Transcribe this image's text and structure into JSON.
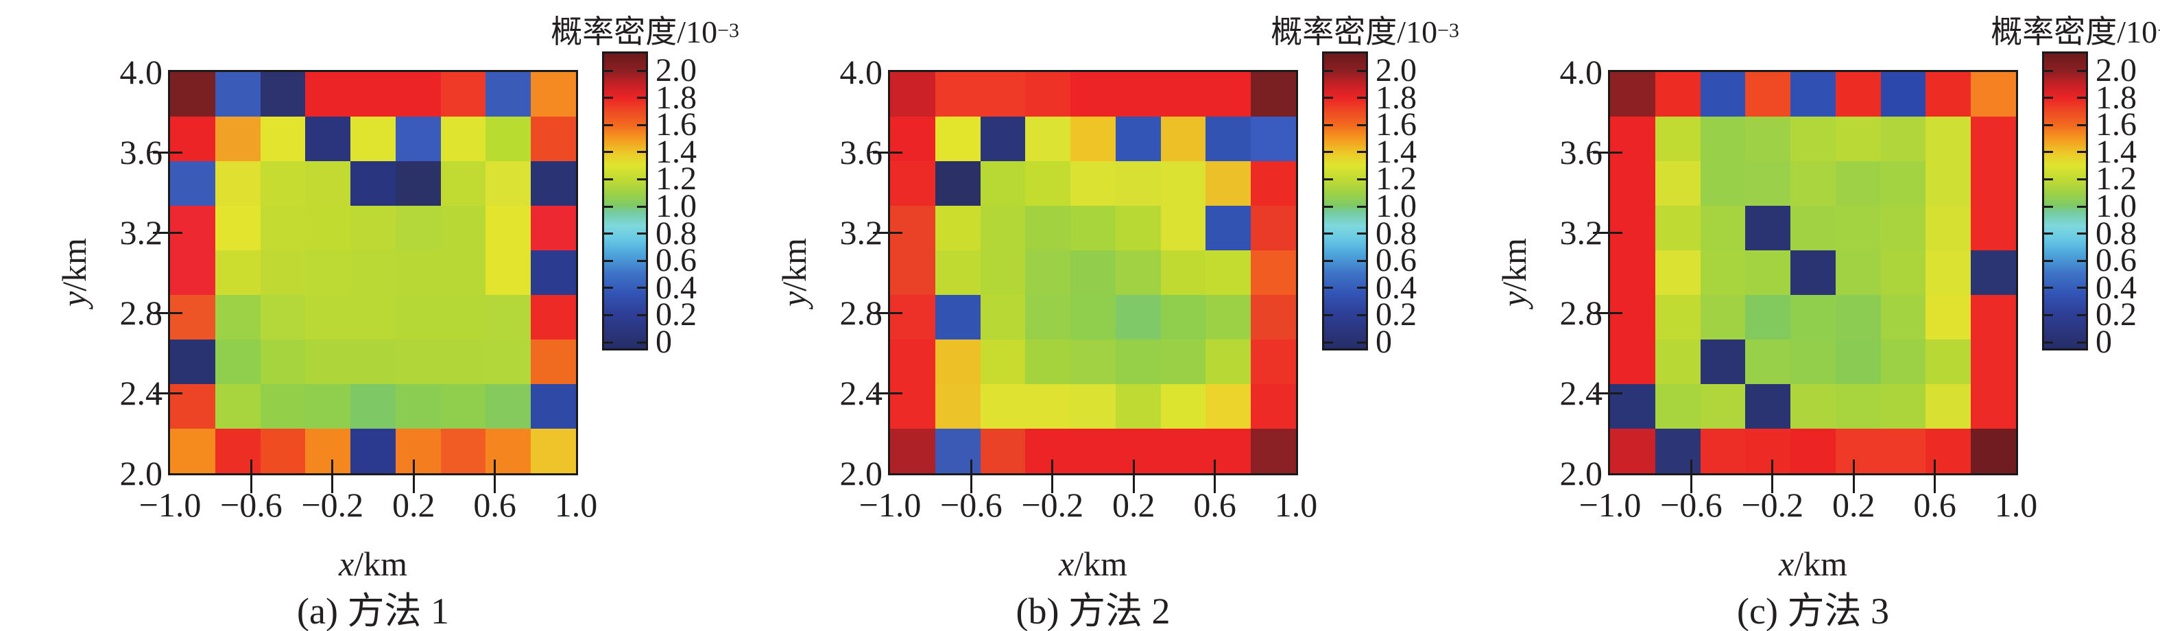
{
  "figure": {
    "background": "#ffffff",
    "text_color": "#231f20",
    "axis_color": "#1a1a1a"
  },
  "colorbar": {
    "title_main": "概率密度/10",
    "title_exp": "−3",
    "tick_labels": [
      "2.0",
      "1.8",
      "1.6",
      "1.4",
      "1.2",
      "1.0",
      "0.8",
      "0.6",
      "0.4",
      "0.2",
      "0"
    ],
    "gradient_stops": [
      "#252e6d 0%",
      "#283170 2.7%",
      "#2e3f97 11.9%",
      "#3355b5 18.7%",
      "#3f74c8 25.6%",
      "#4fa8dc 32.4%",
      "#67c8e4 37%",
      "#7fd8dc 41.6%",
      "#74cba0 46.1%",
      "#7fc968 48.4%",
      "#a0d243 53%",
      "#c2db33 57.5%",
      "#dfe52e 62.1%",
      "#eec427 66.7%",
      "#f5991f 71.2%",
      "#f2691f 75.8%",
      "#ee4a24 80.4%",
      "#ed2426 84.9%",
      "#c62026 89.5%",
      "#8c1f22 94.1%",
      "#6b1a1c 100%"
    ]
  },
  "axes": {
    "x_italic": "x",
    "x_unit": "/km",
    "y_italic": "y",
    "y_unit": "/km",
    "x_ticks": [
      "−1.0",
      "−0.6",
      "−0.2",
      "0.2",
      "0.6",
      "1.0"
    ],
    "y_ticks": [
      "4.0",
      "3.6",
      "3.2",
      "2.8",
      "2.4",
      "2.0"
    ]
  },
  "chart_data": [
    {
      "type": "heatmap",
      "caption": "(a) 方法 1",
      "xlabel": "x/km",
      "ylabel": "y/km",
      "x_range": [
        -1.0,
        1.0
      ],
      "y_range": [
        2.0,
        4.0
      ],
      "grid_size": [
        9,
        9
      ],
      "value_unit": "10^-3",
      "colorbar_range": [
        0,
        2.0
      ],
      "row_order": "top_to_bottom_y_4.0_to_2.0",
      "cell_colors": [
        [
          "#7a2022",
          "#3a5cb8",
          "#2c336e",
          "#ed2426",
          "#ed2426",
          "#ed2426",
          "#ee3a26",
          "#3a5cb8",
          "#f58a22"
        ],
        [
          "#ed2426",
          "#f0a126",
          "#e2e42d",
          "#2a357e",
          "#e0e42e",
          "#3a5abc",
          "#dfe52e",
          "#b8dc30",
          "#ee4a24"
        ],
        [
          "#3a5cb8",
          "#e0e030",
          "#c6dc30",
          "#c2da32",
          "#2a3580",
          "#2b3268",
          "#c2db33",
          "#dce234",
          "#2a3474"
        ],
        [
          "#ed2830",
          "#e2e42d",
          "#c4db31",
          "#c2db31",
          "#bed933",
          "#b4d73a",
          "#b8d836",
          "#e2e42d",
          "#ed2830"
        ],
        [
          "#ed2830",
          "#ccdd2f",
          "#c0da33",
          "#bcd934",
          "#bad934",
          "#b8d836",
          "#b8d836",
          "#e2e42d",
          "#2b3b8f"
        ],
        [
          "#ee5526",
          "#9ed246",
          "#b4d73a",
          "#bad935",
          "#bad935",
          "#b6d837",
          "#b6d837",
          "#b4d73a",
          "#ed2a26"
        ],
        [
          "#293372",
          "#90ce4e",
          "#a6d43f",
          "#aed63b",
          "#aed63b",
          "#b0d63a",
          "#b0d63a",
          "#b2d73a",
          "#f06a20"
        ],
        [
          "#ee4426",
          "#a8d53e",
          "#94cf4a",
          "#90ce4e",
          "#7ec966",
          "#8bcc52",
          "#90ce4e",
          "#84ca5c",
          "#2e4aa6"
        ],
        [
          "#f58a1e",
          "#ed2e24",
          "#f04c22",
          "#f5871f",
          "#2b3a8e",
          "#f47d20",
          "#f05c24",
          "#f5851f",
          "#eec42a"
        ]
      ],
      "cell_values": [
        [
          2.05,
          0.28,
          0.03,
          1.8,
          1.8,
          1.8,
          1.72,
          0.28,
          1.5
        ],
        [
          1.8,
          1.45,
          1.28,
          0.08,
          1.28,
          0.28,
          1.28,
          1.18,
          1.68
        ],
        [
          0.28,
          1.3,
          1.22,
          1.2,
          0.08,
          0.03,
          1.2,
          1.28,
          0.05
        ],
        [
          1.8,
          1.28,
          1.21,
          1.2,
          1.19,
          1.16,
          1.17,
          1.28,
          1.8
        ],
        [
          1.8,
          1.23,
          1.2,
          1.18,
          1.18,
          1.17,
          1.17,
          1.28,
          0.12
        ],
        [
          1.62,
          1.1,
          1.16,
          1.18,
          1.18,
          1.17,
          1.17,
          1.16,
          1.8
        ],
        [
          0.05,
          1.05,
          1.13,
          1.15,
          1.15,
          1.16,
          1.16,
          1.16,
          1.58
        ],
        [
          1.68,
          1.13,
          1.06,
          1.05,
          0.96,
          1.02,
          1.05,
          0.99,
          0.2
        ],
        [
          1.5,
          1.78,
          1.66,
          1.5,
          0.12,
          1.52,
          1.6,
          1.5,
          1.38
        ]
      ]
    },
    {
      "type": "heatmap",
      "caption": "(b) 方法 2",
      "xlabel": "x/km",
      "ylabel": "y/km",
      "x_range": [
        -1.0,
        1.0
      ],
      "y_range": [
        2.0,
        4.0
      ],
      "grid_size": [
        9,
        9
      ],
      "value_unit": "10^-3",
      "colorbar_range": [
        0,
        2.0
      ],
      "row_order": "top_to_bottom_y_4.0_to_2.0",
      "cell_colors": [
        [
          "#cc2127",
          "#ee3a26",
          "#ee3a26",
          "#ee3226",
          "#ed2426",
          "#ed2426",
          "#ed2426",
          "#ed2426",
          "#7a1f22"
        ],
        [
          "#ed2426",
          "#e2e52c",
          "#2b3579",
          "#dde332",
          "#eec427",
          "#3355b5",
          "#eec027",
          "#3253b2",
          "#3a5cc0"
        ],
        [
          "#ed2a26",
          "#2b3166",
          "#b8d834",
          "#c4dc30",
          "#dce232",
          "#d8e034",
          "#dce232",
          "#ecc028",
          "#ed2a24"
        ],
        [
          "#ea4226",
          "#ccdd2e",
          "#b4d738",
          "#a2d240",
          "#a8d43c",
          "#b8d834",
          "#dce232",
          "#3253b2",
          "#ea3a28"
        ],
        [
          "#ea4226",
          "#c0da32",
          "#b4d738",
          "#9cd147",
          "#92ce4b",
          "#a0d243",
          "#c0da32",
          "#c4dc30",
          "#f05c22"
        ],
        [
          "#ed3028",
          "#3253b2",
          "#b8d836",
          "#98d04a",
          "#90ce4e",
          "#7fc968",
          "#90ce4e",
          "#9cd145",
          "#ea4426"
        ],
        [
          "#ed2a26",
          "#eec027",
          "#c8dc30",
          "#a4d33e",
          "#a0d243",
          "#96cf48",
          "#9ad046",
          "#b8d836",
          "#ed3226"
        ],
        [
          "#ed2a26",
          "#ecc42a",
          "#e0e232",
          "#e0e232",
          "#dce232",
          "#c0da34",
          "#dce430",
          "#ecd42c",
          "#ed2a26"
        ],
        [
          "#ae2127",
          "#3a5ab6",
          "#ea4226",
          "#ed2426",
          "#ed2426",
          "#ed2426",
          "#ed2426",
          "#ed2426",
          "#8c2125"
        ]
      ],
      "cell_values": [
        [
          1.9,
          1.72,
          1.72,
          1.74,
          1.8,
          1.8,
          1.8,
          1.8,
          2.05
        ],
        [
          1.8,
          1.28,
          0.08,
          1.29,
          1.4,
          0.25,
          1.41,
          0.24,
          0.28
        ],
        [
          1.8,
          0.03,
          1.17,
          1.21,
          1.28,
          1.29,
          1.28,
          1.41,
          1.8
        ],
        [
          1.7,
          1.23,
          1.16,
          1.11,
          1.13,
          1.17,
          1.28,
          0.24,
          1.72
        ],
        [
          1.7,
          1.2,
          1.16,
          1.08,
          1.05,
          1.12,
          1.2,
          1.21,
          1.62
        ],
        [
          1.78,
          0.24,
          1.17,
          1.08,
          1.05,
          0.95,
          1.05,
          1.1,
          1.7
        ],
        [
          1.8,
          1.41,
          1.22,
          1.13,
          1.12,
          1.06,
          1.08,
          1.17,
          1.76
        ],
        [
          1.8,
          1.4,
          1.28,
          1.28,
          1.28,
          1.2,
          1.28,
          1.35,
          1.8
        ],
        [
          1.88,
          0.27,
          1.7,
          1.8,
          1.8,
          1.8,
          1.8,
          1.8,
          2.0
        ]
      ]
    },
    {
      "type": "heatmap",
      "caption": "(c) 方法 3",
      "xlabel": "x/km",
      "ylabel": "y/km",
      "x_range": [
        -1.0,
        1.0
      ],
      "y_range": [
        2.0,
        4.0
      ],
      "grid_size": [
        9,
        9
      ],
      "value_unit": "10^-3",
      "colorbar_range": [
        0,
        2.0
      ],
      "row_order": "top_to_bottom_y_4.0_to_2.0",
      "cell_colors": [
        [
          "#8c2023",
          "#ed2c24",
          "#3150b4",
          "#f04a24",
          "#3150b4",
          "#ed2c24",
          "#2d48ac",
          "#ed2c24",
          "#f58122"
        ],
        [
          "#ed2426",
          "#c2db33",
          "#98d04a",
          "#9ed146",
          "#b2d73b",
          "#bad936",
          "#b0d63c",
          "#d0df33",
          "#ed2a26"
        ],
        [
          "#ed2426",
          "#d6e032",
          "#98d04a",
          "#9ad04a",
          "#aad53e",
          "#9ed146",
          "#a4d342",
          "#d0df33",
          "#ed2a26"
        ],
        [
          "#ed2426",
          "#c0da34",
          "#a6d440",
          "#2a3472",
          "#a0d243",
          "#a4d342",
          "#aad43e",
          "#d6e032",
          "#ed2a26"
        ],
        [
          "#ed2426",
          "#dce232",
          "#a8d43e",
          "#a4d342",
          "#2a3472",
          "#a0d243",
          "#acd53c",
          "#dce232",
          "#2b3573"
        ],
        [
          "#ed2426",
          "#c2db33",
          "#a0d243",
          "#82ca5e",
          "#90ce4e",
          "#8ccc52",
          "#a4d342",
          "#e0e22f",
          "#ed2a26"
        ],
        [
          "#ed2426",
          "#b8d836",
          "#2a3472",
          "#98d04a",
          "#94cf4b",
          "#8acb54",
          "#9cd146",
          "#b8d836",
          "#ed2a26"
        ],
        [
          "#2a3578",
          "#a8d43e",
          "#b0d63c",
          "#2a3472",
          "#aed63c",
          "#a8d43e",
          "#acd53c",
          "#d8e132",
          "#ed2a26"
        ],
        [
          "#cc2127",
          "#2c3576",
          "#ed2e26",
          "#ed2a24",
          "#ed2424",
          "#ee3a26",
          "#ee3a26",
          "#ed2a24",
          "#701c20"
        ]
      ],
      "cell_values": [
        [
          2.0,
          1.79,
          0.26,
          1.68,
          0.26,
          1.79,
          0.22,
          1.79,
          1.5
        ],
        [
          1.8,
          1.2,
          1.08,
          1.11,
          1.16,
          1.18,
          1.16,
          1.26,
          1.8
        ],
        [
          1.8,
          1.27,
          1.08,
          1.09,
          1.13,
          1.11,
          1.12,
          1.26,
          1.8
        ],
        [
          1.8,
          1.2,
          1.13,
          0.05,
          1.12,
          1.12,
          1.14,
          1.27,
          1.8
        ],
        [
          1.8,
          1.28,
          1.13,
          1.12,
          0.05,
          1.12,
          1.14,
          1.28,
          0.1
        ],
        [
          1.8,
          1.2,
          1.12,
          0.98,
          1.05,
          1.02,
          1.12,
          1.29,
          1.8
        ],
        [
          1.8,
          1.17,
          0.05,
          1.08,
          1.06,
          1.02,
          1.09,
          1.17,
          1.8
        ],
        [
          0.06,
          1.13,
          1.16,
          0.05,
          1.15,
          1.13,
          1.14,
          1.27,
          1.8
        ],
        [
          1.9,
          0.05,
          1.79,
          1.79,
          1.8,
          1.73,
          1.73,
          1.79,
          2.1
        ]
      ]
    }
  ]
}
